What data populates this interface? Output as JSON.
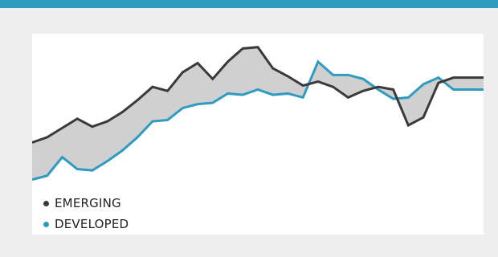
{
  "colors": {
    "accent": "#2f9bc0",
    "emerging": "#3a3a3a",
    "developed": "#2f9bc0",
    "fill": "#d1d0d0"
  },
  "chart_data": {
    "type": "line",
    "title": "",
    "xlabel": "",
    "ylabel": "",
    "ylim": [
      0,
      100
    ],
    "x": [
      0,
      1,
      2,
      3,
      4,
      5,
      6,
      7,
      8,
      9,
      10,
      11,
      12,
      13,
      14,
      15,
      16,
      17,
      18,
      19,
      20,
      21,
      22,
      23,
      24,
      25,
      26,
      27,
      28,
      29,
      30
    ],
    "series": [
      {
        "name": "EMERGING",
        "color": "#3a3a3a",
        "values": [
          30,
          34,
          41,
          48,
          42,
          46,
          53,
          62,
          72,
          69,
          83,
          90,
          78,
          91,
          101,
          102,
          86,
          80,
          73,
          76,
          72,
          64,
          69,
          72,
          70,
          43,
          49,
          75,
          79,
          79,
          79
        ]
      },
      {
        "name": "DEVELOPED",
        "color": "#2f9bc0",
        "values": [
          2,
          5,
          19,
          10,
          9,
          16,
          24,
          34,
          46,
          47,
          56,
          59,
          60,
          67,
          66,
          70,
          66,
          67,
          64,
          91,
          81,
          81,
          78,
          70,
          63,
          64,
          74,
          79,
          70,
          70,
          70
        ]
      }
    ],
    "shaded_between_series": true,
    "grid": false,
    "axes_visible": false,
    "legend": [
      "EMERGING",
      "DEVELOPED"
    ],
    "legend_position": "bottom-left"
  }
}
